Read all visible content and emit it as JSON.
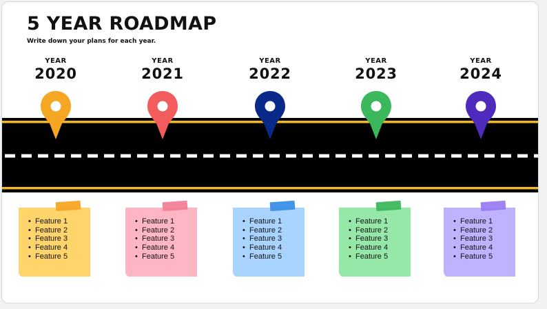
{
  "title": "5 YEAR ROADMAP",
  "subtitle": "Write down your plans for each year.",
  "road_colors": {
    "asphalt": "#000000",
    "edge_line": "#f2b81c",
    "center_dash": "#ffffff"
  },
  "milestones": [
    {
      "label": "YEAR",
      "year": "2020",
      "pin_color": "#f5a623",
      "note_color": "#ffd46b",
      "tape_color": "#f5a623",
      "features": [
        "Feature 1",
        "Feature 2",
        "Feature 3",
        "Feature 4",
        "Feature 5"
      ]
    },
    {
      "label": "YEAR",
      "year": "2021",
      "pin_color": "#f25c5c",
      "note_color": "#ffb6c4",
      "tape_color": "#f27f95",
      "features": [
        "Feature 1",
        "Feature 2",
        "Feature 3",
        "Feature 4",
        "Feature 5"
      ]
    },
    {
      "label": "YEAR",
      "year": "2022",
      "pin_color": "#0a2a8a",
      "note_color": "#a9d4ff",
      "tape_color": "#3a8fe8",
      "features": [
        "Feature 1",
        "Feature 2",
        "Feature 3",
        "Feature 4",
        "Feature 5"
      ]
    },
    {
      "label": "YEAR",
      "year": "2023",
      "pin_color": "#3cb85c",
      "note_color": "#96e8a8",
      "tape_color": "#3cb85c",
      "features": [
        "Feature 1",
        "Feature 2",
        "Feature 3",
        "Feature 4",
        "Feature 5"
      ]
    },
    {
      "label": "YEAR",
      "year": "2024",
      "pin_color": "#4f2bbd",
      "note_color": "#bfb3ff",
      "tape_color": "#9a7bf2",
      "features": [
        "Feature 1",
        "Feature 2",
        "Feature 3",
        "Feature 4",
        "Feature 5"
      ]
    }
  ]
}
